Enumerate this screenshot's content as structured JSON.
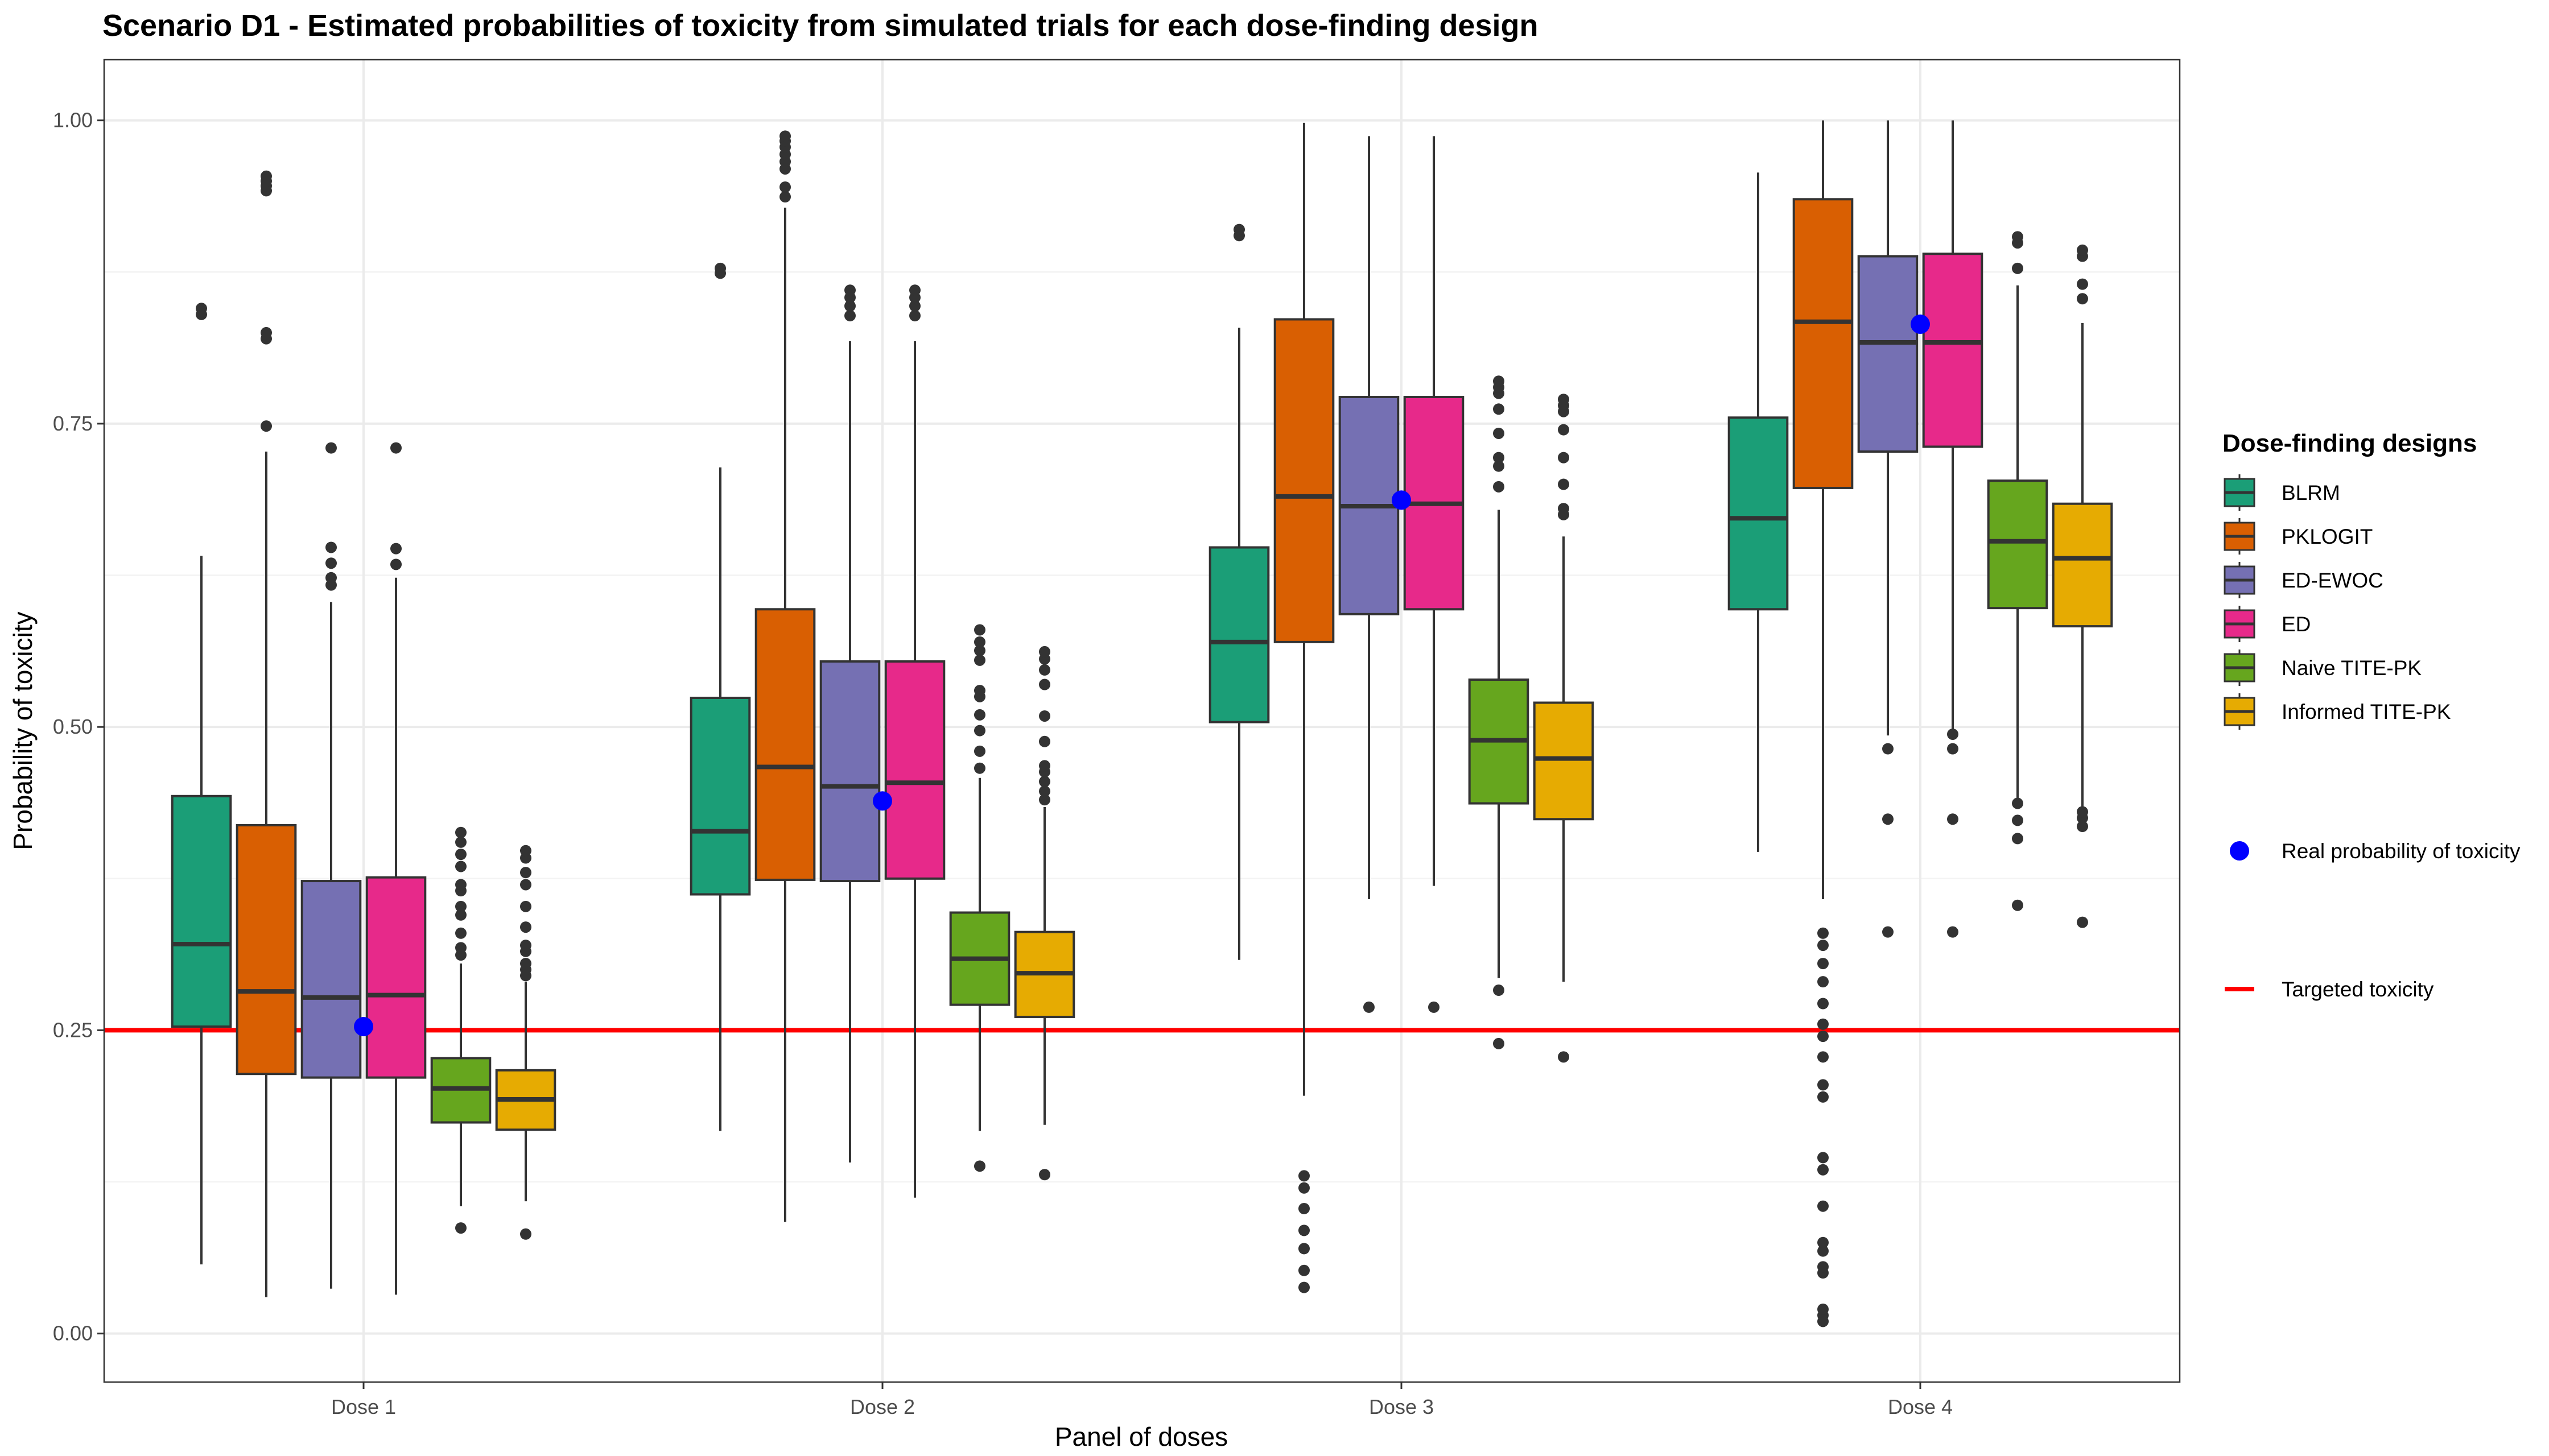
{
  "chart_data": {
    "type": "boxplot",
    "title": "Scenario D1 - Estimated probabilities of toxicity from simulated trials for each dose-finding design",
    "xlabel": "Panel of doses",
    "ylabel": "Probability of toxicity",
    "ylim": [
      -0.04,
      1.05
    ],
    "yticks": [
      "0.00",
      "0.25",
      "0.50",
      "0.75",
      "1.00"
    ],
    "categories": [
      "Dose 1",
      "Dose 2",
      "Dose 3",
      "Dose 4"
    ],
    "grid": true,
    "legend_position": "right",
    "legend_title": "Dose-finding designs",
    "series": [
      {
        "name": "BLRM",
        "color": "#1b9e77",
        "boxes": [
          {
            "whisker_low": 0.057,
            "q1": 0.253,
            "median": 0.321,
            "q3": 0.443,
            "whisker_high": 0.641,
            "outliers": [
              0.84,
              0.845
            ]
          },
          {
            "whisker_low": 0.167,
            "q1": 0.362,
            "median": 0.414,
            "q3": 0.524,
            "whisker_high": 0.714,
            "outliers": [
              0.874,
              0.878
            ]
          },
          {
            "whisker_low": 0.308,
            "q1": 0.504,
            "median": 0.57,
            "q3": 0.648,
            "whisker_high": 0.829,
            "outliers": [
              0.905,
              0.91
            ]
          },
          {
            "whisker_low": 0.397,
            "q1": 0.597,
            "median": 0.672,
            "q3": 0.755,
            "whisker_high": 0.957,
            "outliers": []
          }
        ]
      },
      {
        "name": "PKLOGIT",
        "color": "#d95f02",
        "boxes": [
          {
            "whisker_low": 0.03,
            "q1": 0.214,
            "median": 0.282,
            "q3": 0.419,
            "whisker_high": 0.727,
            "outliers": [
              0.748,
              0.82,
              0.825,
              0.942,
              0.946,
              0.95,
              0.954
            ]
          },
          {
            "whisker_low": 0.092,
            "q1": 0.374,
            "median": 0.467,
            "q3": 0.597,
            "whisker_high": 0.928,
            "outliers": [
              0.937,
              0.945,
              0.96,
              0.966,
              0.972,
              0.978,
              0.983,
              0.987
            ]
          },
          {
            "whisker_low": 0.196,
            "q1": 0.57,
            "median": 0.69,
            "q3": 0.836,
            "whisker_high": 0.998,
            "outliers": [
              0.038,
              0.052,
              0.07,
              0.085,
              0.103,
              0.12,
              0.13
            ]
          },
          {
            "whisker_low": 0.358,
            "q1": 0.697,
            "median": 0.834,
            "q3": 0.935,
            "whisker_high": 1.0,
            "outliers": [
              0.01,
              0.015,
              0.02,
              0.05,
              0.055,
              0.068,
              0.075,
              0.105,
              0.135,
              0.145,
              0.195,
              0.205,
              0.228,
              0.245,
              0.255,
              0.272,
              0.29,
              0.305,
              0.32,
              0.33
            ]
          }
        ]
      },
      {
        "name": "ED-EWOC",
        "color": "#7570b3",
        "boxes": [
          {
            "whisker_low": 0.037,
            "q1": 0.211,
            "median": 0.277,
            "q3": 0.373,
            "whisker_high": 0.603,
            "outliers": [
              0.617,
              0.623,
              0.635,
              0.648,
              0.73
            ]
          },
          {
            "whisker_low": 0.141,
            "q1": 0.373,
            "median": 0.451,
            "q3": 0.554,
            "whisker_high": 0.818,
            "outliers": [
              0.839,
              0.847,
              0.854,
              0.86
            ]
          },
          {
            "whisker_low": 0.358,
            "q1": 0.593,
            "median": 0.682,
            "q3": 0.772,
            "whisker_high": 0.987,
            "outliers": [
              0.269
            ]
          },
          {
            "whisker_low": 0.493,
            "q1": 0.727,
            "median": 0.817,
            "q3": 0.888,
            "whisker_high": 1.0,
            "outliers": [
              0.331,
              0.424,
              0.482
            ]
          }
        ]
      },
      {
        "name": "ED",
        "color": "#e7298a",
        "boxes": [
          {
            "whisker_low": 0.032,
            "q1": 0.211,
            "median": 0.279,
            "q3": 0.376,
            "whisker_high": 0.623,
            "outliers": [
              0.634,
              0.647,
              0.73
            ]
          },
          {
            "whisker_low": 0.112,
            "q1": 0.375,
            "median": 0.454,
            "q3": 0.554,
            "whisker_high": 0.818,
            "outliers": [
              0.839,
              0.847,
              0.854,
              0.86
            ]
          },
          {
            "whisker_low": 0.369,
            "q1": 0.597,
            "median": 0.684,
            "q3": 0.772,
            "whisker_high": 0.987,
            "outliers": [
              0.269
            ]
          },
          {
            "whisker_low": 0.493,
            "q1": 0.731,
            "median": 0.817,
            "q3": 0.89,
            "whisker_high": 1.0,
            "outliers": [
              0.331,
              0.424,
              0.482,
              0.494
            ]
          }
        ]
      },
      {
        "name": "Naive TITE-PK",
        "color": "#66a61e",
        "boxes": [
          {
            "whisker_low": 0.105,
            "q1": 0.174,
            "median": 0.202,
            "q3": 0.227,
            "whisker_high": 0.305,
            "outliers": [
              0.087,
              0.312,
              0.318,
              0.33,
              0.345,
              0.352,
              0.365,
              0.37,
              0.385,
              0.395,
              0.405,
              0.413
            ]
          },
          {
            "whisker_low": 0.167,
            "q1": 0.271,
            "median": 0.309,
            "q3": 0.347,
            "whisker_high": 0.458,
            "outliers": [
              0.138,
              0.466,
              0.48,
              0.497,
              0.51,
              0.525,
              0.53,
              0.555,
              0.563,
              0.57,
              0.58
            ]
          },
          {
            "whisker_low": 0.293,
            "q1": 0.437,
            "median": 0.489,
            "q3": 0.539,
            "whisker_high": 0.679,
            "outliers": [
              0.239,
              0.283,
              0.698,
              0.715,
              0.722,
              0.742,
              0.762,
              0.775,
              0.78,
              0.785
            ]
          },
          {
            "whisker_low": 0.437,
            "q1": 0.598,
            "median": 0.653,
            "q3": 0.703,
            "whisker_high": 0.864,
            "outliers": [
              0.353,
              0.408,
              0.423,
              0.437,
              0.878,
              0.899,
              0.904
            ]
          }
        ]
      },
      {
        "name": "Informed TITE-PK",
        "color": "#e6ab02",
        "boxes": [
          {
            "whisker_low": 0.109,
            "q1": 0.168,
            "median": 0.193,
            "q3": 0.217,
            "whisker_high": 0.29,
            "outliers": [
              0.082,
              0.295,
              0.3,
              0.305,
              0.315,
              0.32,
              0.335,
              0.352,
              0.37,
              0.38,
              0.392,
              0.398
            ]
          },
          {
            "whisker_low": 0.172,
            "q1": 0.261,
            "median": 0.297,
            "q3": 0.331,
            "whisker_high": 0.434,
            "outliers": [
              0.131,
              0.44,
              0.447,
              0.455,
              0.463,
              0.468,
              0.488,
              0.509,
              0.535,
              0.547,
              0.556,
              0.562
            ]
          },
          {
            "whisker_low": 0.29,
            "q1": 0.424,
            "median": 0.474,
            "q3": 0.52,
            "whisker_high": 0.657,
            "outliers": [
              0.228,
              0.675,
              0.68,
              0.7,
              0.722,
              0.745,
              0.76,
              0.765,
              0.77
            ]
          },
          {
            "whisker_low": 0.433,
            "q1": 0.583,
            "median": 0.639,
            "q3": 0.684,
            "whisker_high": 0.833,
            "outliers": [
              0.339,
              0.418,
              0.425,
              0.43,
              0.853,
              0.865,
              0.888,
              0.893
            ]
          }
        ]
      }
    ],
    "real_probability": {
      "name": "Real probability of toxicity",
      "color": "#0000ff",
      "values": [
        0.253,
        0.439,
        0.687,
        0.832
      ]
    },
    "target": {
      "name": "Targeted toxicity",
      "color": "#ff0000",
      "value": 0.25
    }
  }
}
